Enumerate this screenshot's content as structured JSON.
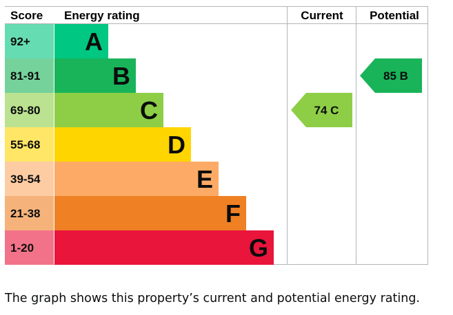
{
  "header": {
    "score": "Score",
    "rating": "Energy rating",
    "current": "Current",
    "potential": "Potential"
  },
  "caption": "The graph shows this property’s current and potential energy rating.",
  "chart_data": {
    "type": "bar",
    "categories": [
      "A",
      "B",
      "C",
      "D",
      "E",
      "F",
      "G"
    ],
    "score_ranges": [
      "92+",
      "81-91",
      "69-80",
      "55-68",
      "39-54",
      "21-38",
      "1-20"
    ],
    "band_colors": [
      "#00c781",
      "#19b459",
      "#8dce46",
      "#ffd500",
      "#fcaa65",
      "#ef8023",
      "#e9153b"
    ],
    "score_colors": [
      "#66dcb3",
      "#75d29b",
      "#bbe290",
      "#ffe666",
      "#fdcca3",
      "#f5b37b",
      "#f27389"
    ],
    "current": {
      "value": 74,
      "band": "C",
      "label": "74 C"
    },
    "potential": {
      "value": 85,
      "band": "B",
      "label": "85 B"
    }
  }
}
